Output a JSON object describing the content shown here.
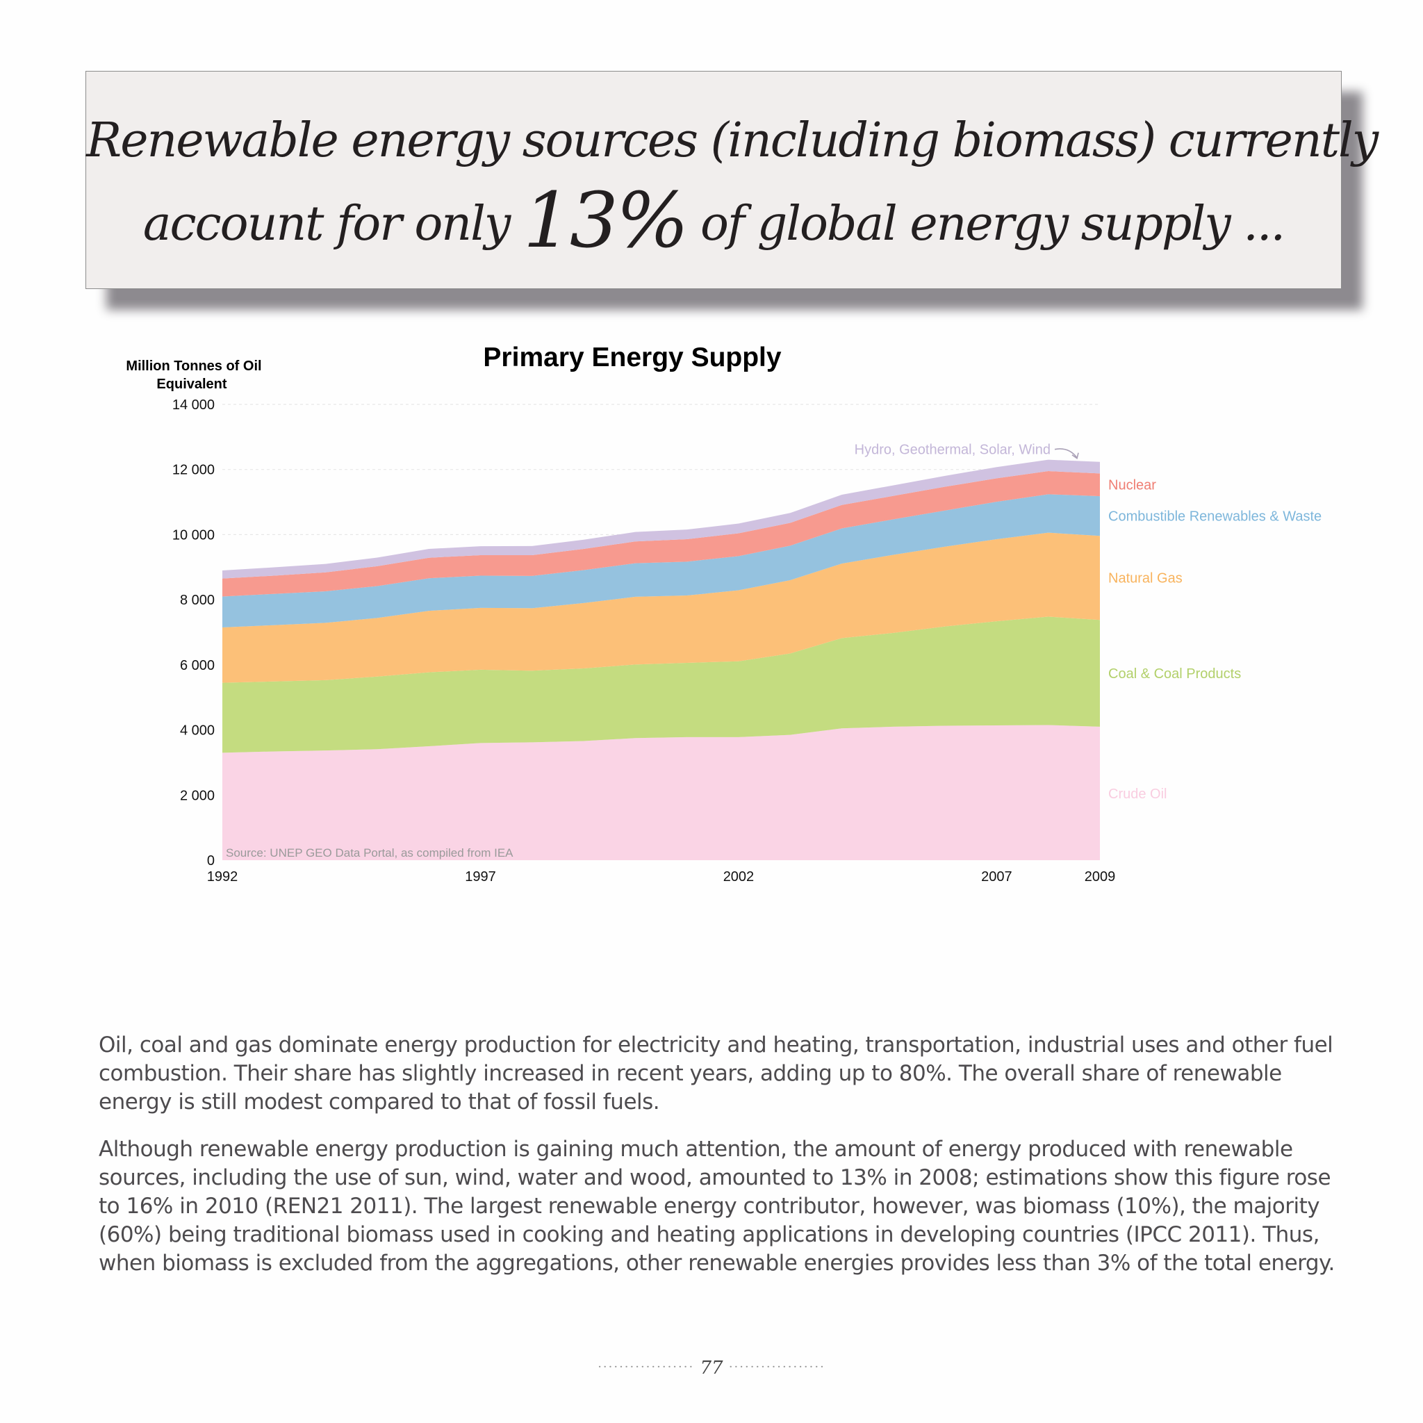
{
  "headline": {
    "line1": "Renewable energy sources (including biomass) currently",
    "line2_before": "account for only",
    "line2_big": "13%",
    "line2_after": "of global energy supply ..."
  },
  "chart_data": {
    "type": "area",
    "stacked": true,
    "title": "Primary Energy Supply",
    "ylabel_line1": "Million Tonnes of Oil",
    "ylabel_line2": "Equivalent",
    "ylim": [
      0,
      14000
    ],
    "yticks": [
      0,
      2000,
      4000,
      6000,
      8000,
      10000,
      12000,
      14000
    ],
    "ytick_labels": [
      "0",
      "2 000",
      "4 000",
      "6 000",
      "8 000",
      "10 000",
      "12 000",
      "14 000"
    ],
    "xtick_labels": [
      "1992",
      "1997",
      "2002",
      "2007",
      "2009"
    ],
    "x": [
      1992,
      1993,
      1994,
      1995,
      1996,
      1997,
      1998,
      1999,
      2000,
      2001,
      2002,
      2003,
      2004,
      2005,
      2006,
      2007,
      2008,
      2009
    ],
    "grid": "horizontal dashed",
    "source": "Source: UNEP GEO Data Portal, as compiled from IEA",
    "annotation": "Hydro, Geothermal, Solar, Wind",
    "series": [
      {
        "name": "Crude Oil",
        "color": "#fad4e5",
        "values": [
          3300,
          3340,
          3370,
          3410,
          3500,
          3600,
          3620,
          3660,
          3750,
          3780,
          3780,
          3850,
          4050,
          4100,
          4130,
          4140,
          4150,
          4100
        ]
      },
      {
        "name": "Coal & Coal Products",
        "color": "#c4dc80",
        "values": [
          2150,
          2150,
          2160,
          2230,
          2270,
          2250,
          2200,
          2230,
          2260,
          2280,
          2330,
          2500,
          2770,
          2880,
          3050,
          3200,
          3330,
          3280
        ]
      },
      {
        "name": "Natural Gas",
        "color": "#fcc078",
        "values": [
          1700,
          1730,
          1760,
          1800,
          1890,
          1900,
          1920,
          2010,
          2080,
          2070,
          2180,
          2250,
          2290,
          2400,
          2450,
          2520,
          2580,
          2580
        ]
      },
      {
        "name": "Combustible Renewables & Waste",
        "color": "#95c2df",
        "values": [
          950,
          960,
          970,
          980,
          1000,
          990,
          990,
          1010,
          1030,
          1040,
          1050,
          1060,
          1080,
          1090,
          1110,
          1150,
          1180,
          1220
        ]
      },
      {
        "name": "Nuclear",
        "color": "#f79a8f",
        "values": [
          550,
          560,
          580,
          610,
          630,
          630,
          640,
          650,
          670,
          690,
          700,
          700,
          720,
          720,
          730,
          720,
          710,
          700
        ]
      },
      {
        "name": "Hydro, Geothermal, Solar, Wind",
        "color": "#d0c2e1",
        "values": [
          250,
          255,
          260,
          265,
          270,
          275,
          280,
          285,
          290,
          295,
          300,
          305,
          315,
          325,
          335,
          345,
          350,
          355
        ]
      }
    ],
    "labels": [
      {
        "series": 5,
        "text": "Hydro, Geothermal, Solar, Wind",
        "color": "#c3b6d8"
      },
      {
        "series": 4,
        "text": "Nuclear",
        "color": "#ef7e73"
      },
      {
        "series": 3,
        "text": "Combustible Renewables & Waste",
        "color": "#7db6db"
      },
      {
        "series": 2,
        "text": "Natural Gas",
        "color": "#f8b35d"
      },
      {
        "series": 1,
        "text": "Coal & Coal Products",
        "color": "#b2d06a"
      },
      {
        "series": 0,
        "text": "Crude Oil",
        "color": "#f9cde0"
      }
    ]
  },
  "body": {
    "p1": "Oil, coal and gas dominate energy production for electricity and heating, transportation, industrial uses and other fuel combustion. Their share has slightly increased in recent years, adding up to 80%. The overall share of renewable energy is still modest compared to that of fossil fuels.",
    "p2": "Although renewable energy production is gaining much attention, the amount of energy produced with renewable sources, including the use of sun, wind, water and wood, amounted to 13% in 2008; estimations show this figure rose to 16% in 2010 (REN21 2011). The largest renewable energy contributor, however, was biomass (10%), the majority (60%) being traditional biomass used in cooking and heating applications in developing countries (IPCC 2011). Thus, when biomass is excluded from the aggregations, other renewable energies provides less than 3% of the total energy."
  },
  "footer": {
    "page_number": "77"
  }
}
